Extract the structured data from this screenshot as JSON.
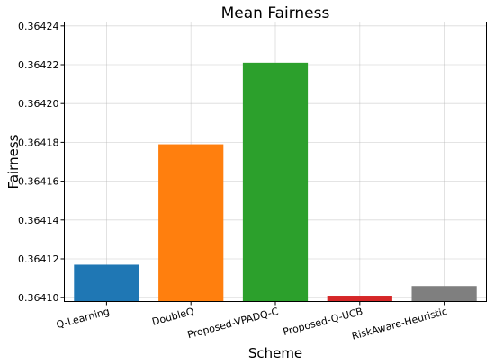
{
  "chart_data": {
    "type": "bar",
    "title": "Mean Fairness",
    "xlabel": "Scheme",
    "ylabel": "Fairness",
    "categories": [
      "Q-Learning",
      "DoubleQ",
      "Proposed-VPADQ-C",
      "Proposed-Q-UCB",
      "RiskAware-Heuristic"
    ],
    "values": [
      0.364117,
      0.364179,
      0.364221,
      0.364101,
      0.364106
    ],
    "colors": [
      "#1f77b4",
      "#ff7f0e",
      "#2ca02c",
      "#d62728",
      "#7f7f7f"
    ],
    "ylim": [
      0.364098,
      0.364242
    ],
    "yticks": [
      0.3641,
      0.36412,
      0.36414,
      0.36416,
      0.36418,
      0.3642,
      0.36422,
      0.36424
    ],
    "ytick_labels": [
      "0.36410",
      "0.36412",
      "0.36414",
      "0.36416",
      "0.36418",
      "0.36420",
      "0.36422",
      "0.36424"
    ],
    "grid": true
  }
}
